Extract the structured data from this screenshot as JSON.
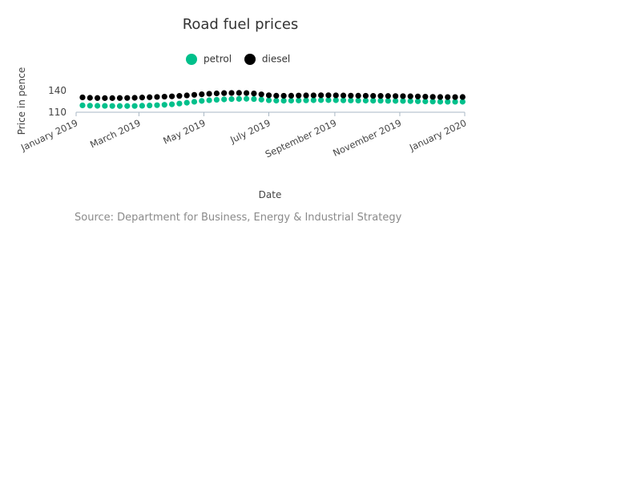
{
  "chart_data": {
    "type": "scatter",
    "title": "Road fuel prices",
    "xlabel": "Date",
    "ylabel": "Price in pence",
    "source": "Source: Department for Business, Energy & Industrial Strategy",
    "x_range": [
      "2019-01-01",
      "2020-01-01"
    ],
    "ylim": [
      110,
      140
    ],
    "y_ticks": [
      110,
      140
    ],
    "x_ticks": [
      {
        "date": "2019-01-01",
        "label": "January 2019"
      },
      {
        "date": "2019-03-01",
        "label": "March 2019"
      },
      {
        "date": "2019-05-01",
        "label": "May 2019"
      },
      {
        "date": "2019-07-01",
        "label": "July 2019"
      },
      {
        "date": "2019-09-01",
        "label": "September 2019"
      },
      {
        "date": "2019-11-01",
        "label": "November 2019"
      },
      {
        "date": "2020-01-01",
        "label": "January 2020"
      }
    ],
    "legend_position": "top",
    "grid": false,
    "x": [
      "2019-01-07",
      "2019-01-14",
      "2019-01-21",
      "2019-01-28",
      "2019-02-04",
      "2019-02-11",
      "2019-02-18",
      "2019-02-25",
      "2019-03-04",
      "2019-03-11",
      "2019-03-18",
      "2019-03-25",
      "2019-04-01",
      "2019-04-08",
      "2019-04-15",
      "2019-04-22",
      "2019-04-29",
      "2019-05-06",
      "2019-05-13",
      "2019-05-20",
      "2019-05-27",
      "2019-06-03",
      "2019-06-10",
      "2019-06-17",
      "2019-06-24",
      "2019-07-01",
      "2019-07-08",
      "2019-07-15",
      "2019-07-22",
      "2019-07-29",
      "2019-08-05",
      "2019-08-12",
      "2019-08-19",
      "2019-08-26",
      "2019-09-02",
      "2019-09-09",
      "2019-09-16",
      "2019-09-23",
      "2019-09-30",
      "2019-10-07",
      "2019-10-14",
      "2019-10-21",
      "2019-10-28",
      "2019-11-04",
      "2019-11-11",
      "2019-11-18",
      "2019-11-25",
      "2019-12-02",
      "2019-12-09",
      "2019-12-16",
      "2019-12-23",
      "2019-12-30"
    ],
    "series": [
      {
        "name": "petrol",
        "color": "#00c08b",
        "values": [
          119.5,
          119.1,
          118.9,
          118.8,
          118.7,
          118.6,
          118.6,
          118.7,
          119.0,
          119.4,
          119.8,
          120.3,
          121.0,
          122.0,
          123.2,
          124.5,
          125.7,
          126.6,
          127.3,
          127.8,
          128.2,
          128.5,
          128.6,
          128.3,
          127.5,
          126.6,
          126.1,
          126.0,
          126.1,
          126.3,
          126.5,
          126.7,
          126.8,
          126.8,
          126.7,
          126.5,
          126.3,
          126.2,
          126.1,
          126.0,
          125.9,
          125.8,
          125.7,
          125.6,
          125.4,
          125.2,
          125.0,
          124.8,
          124.6,
          124.5,
          124.5,
          124.6
        ]
      },
      {
        "name": "diesel",
        "color": "#000000",
        "values": [
          130.6,
          130.0,
          129.7,
          129.6,
          129.6,
          129.7,
          129.8,
          130.0,
          130.4,
          130.8,
          131.2,
          131.6,
          132.0,
          132.6,
          133.3,
          134.1,
          134.9,
          135.6,
          136.1,
          136.5,
          136.7,
          136.8,
          136.6,
          136.0,
          134.8,
          133.5,
          132.9,
          132.8,
          132.9,
          133.1,
          133.3,
          133.4,
          133.5,
          133.5,
          133.4,
          133.2,
          133.0,
          132.9,
          132.8,
          132.7,
          132.6,
          132.5,
          132.4,
          132.3,
          132.1,
          131.9,
          131.6,
          131.3,
          131.1,
          131.0,
          131.0,
          131.1
        ]
      }
    ]
  }
}
